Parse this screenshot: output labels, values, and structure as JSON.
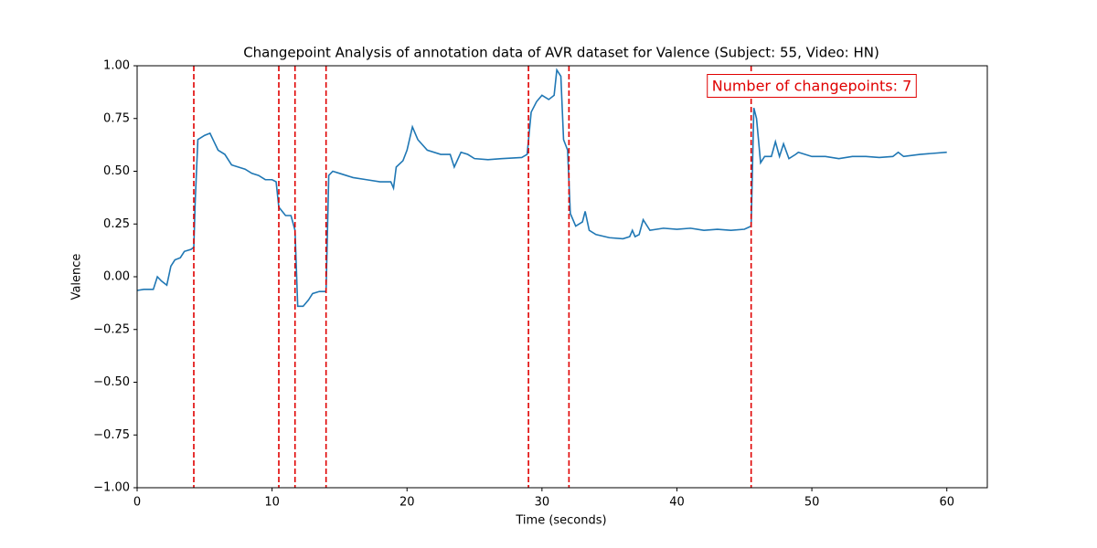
{
  "chart_data": {
    "type": "line",
    "title": "Changepoint Analysis of annotation data of AVR dataset for Valence (Subject: 55, Video: HN)",
    "xlabel": "Time (seconds)",
    "ylabel": "Valence",
    "xlim": [
      0,
      63
    ],
    "ylim": [
      -1,
      1
    ],
    "xticks": [
      0,
      10,
      20,
      30,
      40,
      50,
      60
    ],
    "yticks": [
      {
        "value": -1,
        "label": "−1.00"
      },
      {
        "value": -0.75,
        "label": "−0.75"
      },
      {
        "value": -0.5,
        "label": "−0.50"
      },
      {
        "value": -0.25,
        "label": "−0.25"
      },
      {
        "value": 0,
        "label": "0.00"
      },
      {
        "value": 0.25,
        "label": "0.25"
      },
      {
        "value": 0.5,
        "label": "0.50"
      },
      {
        "value": 0.75,
        "label": "0.75"
      },
      {
        "value": 1,
        "label": "1.00"
      }
    ],
    "x": [
      0,
      0.5,
      1.2,
      1.5,
      1.8,
      2.2,
      2.5,
      2.8,
      3.2,
      3.5,
      4.0,
      4.2,
      4.3,
      4.5,
      5.0,
      5.4,
      5.7,
      6.0,
      6.5,
      7.0,
      8.0,
      8.5,
      9.0,
      9.5,
      10.0,
      10.3,
      10.5,
      11.0,
      11.4,
      11.7,
      11.9,
      12.3,
      12.7,
      13.0,
      13.5,
      14.0,
      14.2,
      14.5,
      15.0,
      16.0,
      17.0,
      18.0,
      18.8,
      19.0,
      19.2,
      19.7,
      20.0,
      20.4,
      20.8,
      21.5,
      22.5,
      23.2,
      23.5,
      24.0,
      24.5,
      25.0,
      26.0,
      27.0,
      28.5,
      28.9,
      29.2,
      29.6,
      30.0,
      30.5,
      30.9,
      31.1,
      31.4,
      31.6,
      31.9,
      32.1,
      32.5,
      33.0,
      33.2,
      33.5,
      34.0,
      35.0,
      36.0,
      36.5,
      36.7,
      36.9,
      37.2,
      37.5,
      38.0,
      39.0,
      40.0,
      41.0,
      42.0,
      43.0,
      44.0,
      45.0,
      45.5,
      45.7,
      45.9,
      46.2,
      46.5,
      47.0,
      47.3,
      47.6,
      47.9,
      48.3,
      48.8,
      49.0,
      50.0,
      51.0,
      52.0,
      53.0,
      54.0,
      55.0,
      56.0,
      56.4,
      56.8,
      58.0,
      59.0,
      60.0
    ],
    "series": [
      {
        "name": "Valence",
        "color": "#1f77b4",
        "values": [
          -0.065,
          -0.06,
          -0.06,
          0.0,
          -0.02,
          -0.04,
          0.05,
          0.08,
          0.09,
          0.12,
          0.13,
          0.14,
          0.35,
          0.65,
          0.67,
          0.68,
          0.64,
          0.6,
          0.58,
          0.53,
          0.51,
          0.49,
          0.48,
          0.46,
          0.46,
          0.45,
          0.33,
          0.29,
          0.29,
          0.22,
          -0.14,
          -0.14,
          -0.11,
          -0.08,
          -0.07,
          -0.07,
          0.48,
          0.5,
          0.49,
          0.47,
          0.46,
          0.45,
          0.45,
          0.42,
          0.52,
          0.55,
          0.6,
          0.71,
          0.65,
          0.6,
          0.58,
          0.58,
          0.52,
          0.59,
          0.58,
          0.56,
          0.555,
          0.56,
          0.565,
          0.58,
          0.78,
          0.83,
          0.86,
          0.84,
          0.86,
          0.98,
          0.95,
          0.65,
          0.6,
          0.3,
          0.24,
          0.26,
          0.31,
          0.22,
          0.2,
          0.185,
          0.18,
          0.19,
          0.22,
          0.19,
          0.2,
          0.27,
          0.22,
          0.23,
          0.225,
          0.23,
          0.22,
          0.225,
          0.22,
          0.225,
          0.24,
          0.8,
          0.75,
          0.54,
          0.57,
          0.57,
          0.64,
          0.57,
          0.63,
          0.56,
          0.58,
          0.59,
          0.57,
          0.57,
          0.56,
          0.57,
          0.57,
          0.565,
          0.57,
          0.59,
          0.57,
          0.58,
          0.585,
          0.59
        ]
      }
    ],
    "changepoints": [
      4.2,
      10.5,
      11.7,
      14.0,
      29.0,
      32.0,
      45.5
    ],
    "changepoint_color": "#e00000",
    "annotation": "Number of changepoints: 7"
  }
}
